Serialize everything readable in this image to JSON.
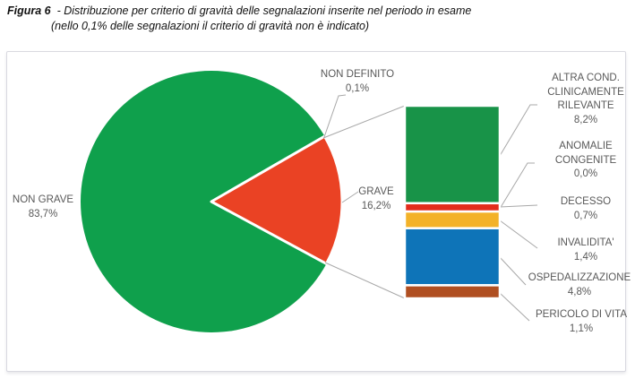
{
  "figure": {
    "label": "Figura 6",
    "dash": "-",
    "title_line1": "Distribuzione per criterio di gravità delle segnalazioni inserite nel periodo in esame",
    "title_line2": "(nello 0,1% delle segnalazioni il criterio di gravità non è indicato)"
  },
  "chart_data": {
    "type": "pie",
    "subtype": "bar-of-pie",
    "title": "Distribuzione per criterio di gravità delle segnalazioni inserite nel periodo in esame",
    "note": "nello 0,1% delle segnalazioni il criterio di gravità non è indicato",
    "pie_slices": [
      {
        "label": "NON GRAVE",
        "value_pct": 83.7,
        "color": "#0fa04c"
      },
      {
        "label": "GRAVE",
        "value_pct": 16.2,
        "color": "#ea4224"
      },
      {
        "label": "NON DEFINITO",
        "value_pct": 0.1,
        "color": "#c9c9c9"
      }
    ],
    "bar_breakdown_of": "GRAVE",
    "bar_segments": [
      {
        "label": "ALTRA COND. CLINICAMENTE RILEVANTE",
        "value_pct": 8.2,
        "color": "#189348"
      },
      {
        "label": "ANOMALIE CONGENITE",
        "value_pct": 0.0,
        "color": "#8a8a8a"
      },
      {
        "label": "DECESSO",
        "value_pct": 0.7,
        "color": "#e32c1c"
      },
      {
        "label": "INVALIDITA'",
        "value_pct": 1.4,
        "color": "#f3b229"
      },
      {
        "label": "OSPEDALIZZAZIONE",
        "value_pct": 4.8,
        "color": "#0e74b8"
      },
      {
        "label": "PERICOLO DI VITA",
        "value_pct": 1.1,
        "color": "#b04f21"
      }
    ],
    "colors": {
      "leader_line": "#a8a8a8",
      "label_text": "#595959",
      "gap_stroke": "#ffffff"
    },
    "legend_position": "none",
    "grid": false
  },
  "callouts": {
    "non_grave": {
      "lines": [
        "NON GRAVE",
        "83,7%"
      ]
    },
    "grave": {
      "lines": [
        "GRAVE",
        "16,2%"
      ]
    },
    "non_definito": {
      "lines": [
        "NON DEFINITO",
        "0,1%"
      ]
    },
    "altra_cond": {
      "lines": [
        "ALTRA COND.",
        "CLINICAMENTE",
        "RILEVANTE",
        "8,2%"
      ]
    },
    "anomalie": {
      "lines": [
        "ANOMALIE",
        "CONGENITE",
        "0,0%"
      ]
    },
    "decesso": {
      "lines": [
        "DECESSO",
        "0,7%"
      ]
    },
    "invalidita": {
      "lines": [
        "INVALIDITA'",
        "1,4%"
      ]
    },
    "ospedalizzazione": {
      "lines": [
        "OSPEDALIZZAZIONE",
        "4,8%"
      ]
    },
    "pericolo_di_vita": {
      "lines": [
        "PERICOLO DI VITA",
        "1,1%"
      ]
    }
  }
}
